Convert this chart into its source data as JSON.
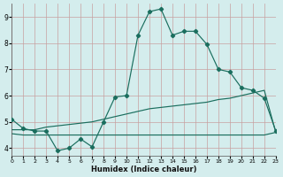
{
  "xlabel": "Humidex (Indice chaleur)",
  "bg_color": "#d4eded",
  "grid_color": "#c8a0a0",
  "line_color": "#1a6e5e",
  "xlim": [
    0,
    23
  ],
  "ylim": [
    3.7,
    9.5
  ],
  "xticks": [
    0,
    1,
    2,
    3,
    4,
    5,
    6,
    7,
    8,
    9,
    10,
    11,
    12,
    13,
    14,
    15,
    16,
    17,
    18,
    19,
    20,
    21,
    22,
    23
  ],
  "yticks": [
    4,
    5,
    6,
    7,
    8,
    9
  ],
  "line1_x": [
    0,
    1,
    2,
    3,
    4,
    5,
    6,
    7,
    8,
    9,
    10,
    11,
    12,
    13,
    14,
    15,
    16,
    17,
    18,
    19,
    20,
    21,
    22,
    23
  ],
  "line1_y": [
    5.1,
    4.75,
    4.65,
    4.65,
    3.9,
    4.0,
    4.35,
    4.05,
    5.0,
    5.95,
    6.0,
    8.3,
    9.2,
    9.3,
    8.3,
    8.45,
    8.45,
    7.95,
    7.0,
    6.9,
    6.3,
    6.2,
    5.9,
    4.65
  ],
  "line2_x": [
    0,
    1,
    2,
    3,
    4,
    5,
    6,
    7,
    8,
    9,
    10,
    11,
    12,
    13,
    14,
    15,
    16,
    17,
    18,
    19,
    20,
    21,
    22,
    23
  ],
  "line2_y": [
    4.7,
    4.7,
    4.7,
    4.8,
    4.85,
    4.9,
    4.95,
    5.0,
    5.1,
    5.2,
    5.3,
    5.4,
    5.5,
    5.55,
    5.6,
    5.65,
    5.7,
    5.75,
    5.85,
    5.9,
    6.0,
    6.1,
    6.2,
    4.6
  ],
  "line3_x": [
    0,
    1,
    2,
    3,
    4,
    5,
    6,
    7,
    8,
    9,
    10,
    11,
    12,
    13,
    14,
    15,
    16,
    17,
    18,
    19,
    20,
    21,
    22,
    23
  ],
  "line3_y": [
    4.55,
    4.5,
    4.5,
    4.5,
    4.5,
    4.5,
    4.5,
    4.5,
    4.5,
    4.5,
    4.5,
    4.5,
    4.5,
    4.5,
    4.5,
    4.5,
    4.5,
    4.5,
    4.5,
    4.5,
    4.5,
    4.5,
    4.5,
    4.6
  ]
}
